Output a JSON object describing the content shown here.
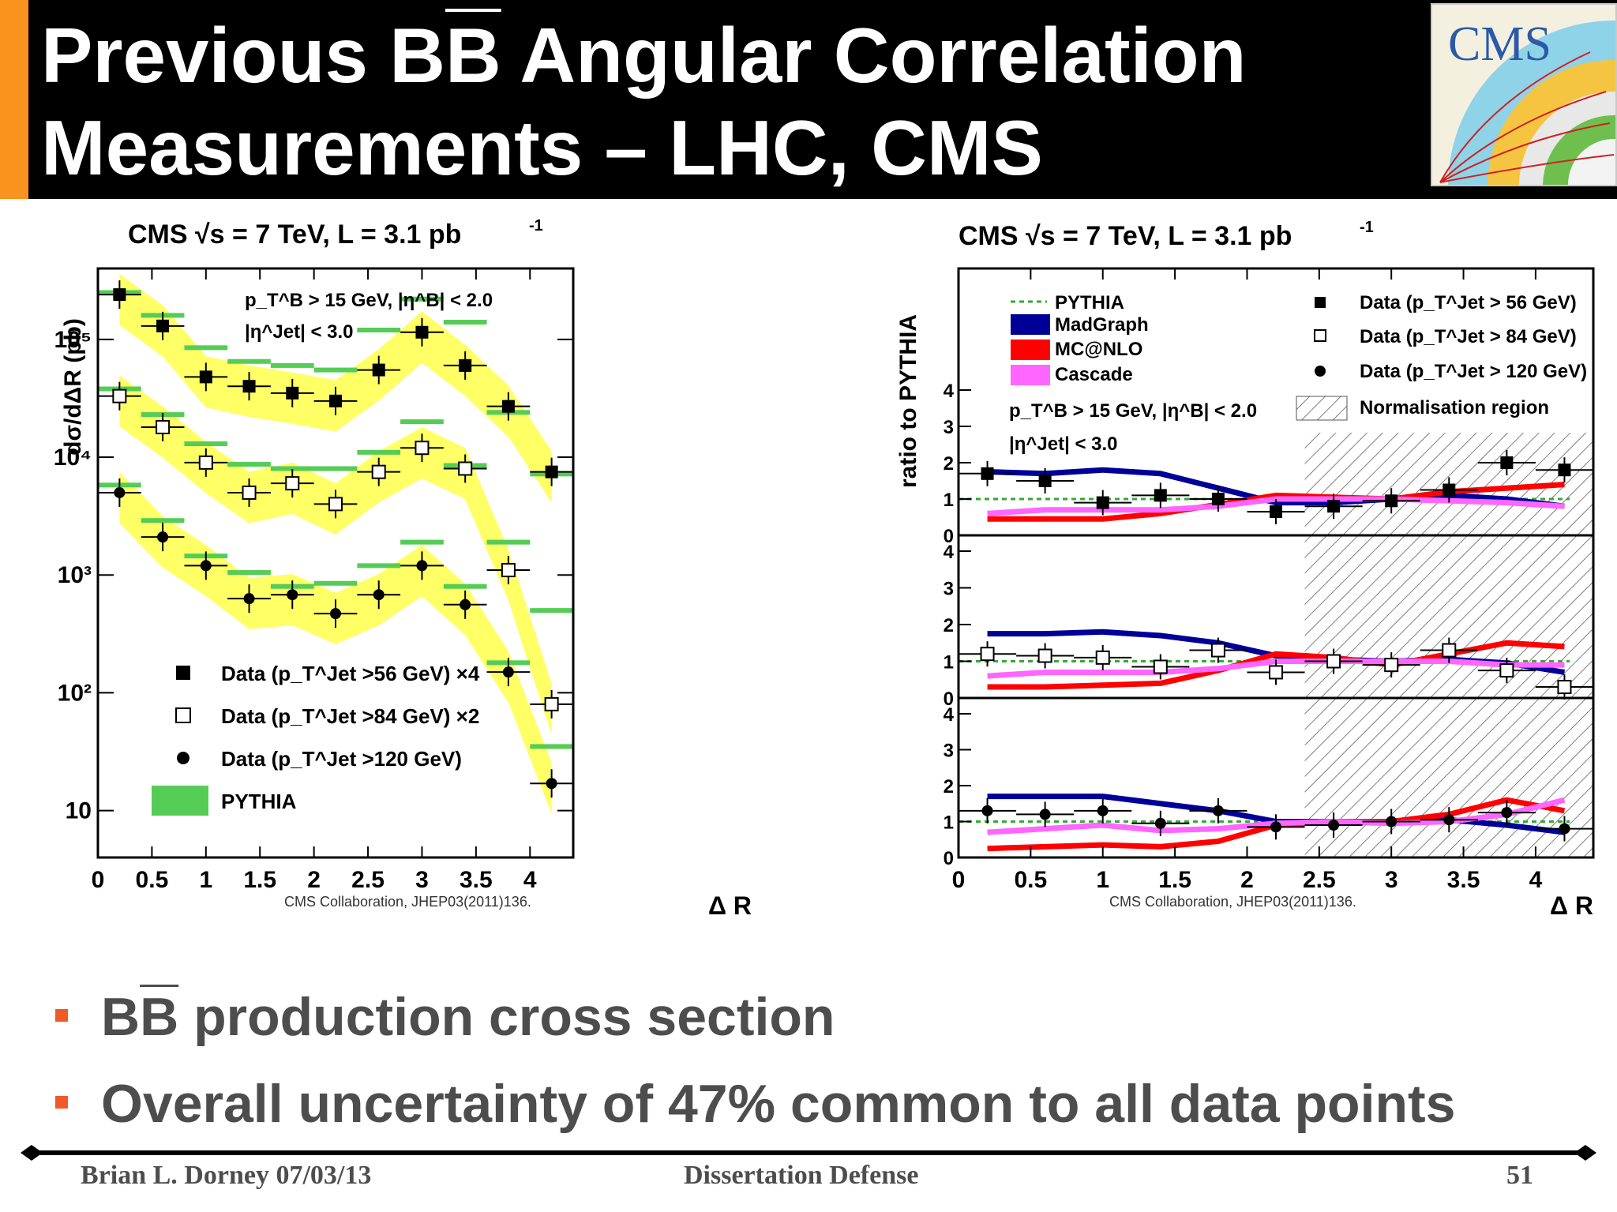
{
  "header": {
    "title_line1_a": "Previous B",
    "title_line1_b": "B",
    "title_line1_c": " Angular Correlation",
    "title_line2": "Measurements – LHC, CMS",
    "logo_text": "CMS"
  },
  "colors": {
    "accent": "#f7931e",
    "pythia": "#55cc55",
    "band": "#ffff66",
    "madgraph": "#000099",
    "mcatnlo": "#ff0000",
    "cascade": "#ff66ff",
    "bullet": "#f05a28"
  },
  "left_plot": {
    "heading": "CMS   √s = 7 TeV, L = 3.1 pb",
    "heading_sup": "-1",
    "ylabel": "dσ/dΔR (pb)",
    "xlabel": "Δ R",
    "cut_line1": "p_T^B > 15 GeV, |η^B| < 2.0",
    "cut_line2": "|η^Jet| < 3.0",
    "legend": [
      "Data (p_T^Jet >56 GeV) ×4",
      "Data (p_T^Jet >84 GeV) ×2",
      "Data (p_T^Jet >120 GeV)",
      "PYTHIA"
    ],
    "y_ticks": [
      "10",
      "10²",
      "10³",
      "10⁴",
      "10⁵"
    ],
    "x_ticks": [
      "0",
      "0.5",
      "1",
      "1.5",
      "2",
      "2.5",
      "3",
      "3.5",
      "4"
    ],
    "citation": "CMS Collaboration, JHEP03(2011)136."
  },
  "right_plot": {
    "heading": "CMS   √s = 7 TeV, L = 3.1 pb",
    "heading_sup": "-1",
    "ylabel": "ratio to PYTHIA",
    "xlabel": "Δ R",
    "legend_left": [
      "PYTHIA",
      "MadGraph",
      "MC@NLO",
      "Cascade"
    ],
    "legend_right": [
      "Data (p_T^Jet > 56 GeV)",
      "Data (p_T^Jet > 84 GeV)",
      "Data (p_T^Jet > 120 GeV)",
      "Normalisation region"
    ],
    "cut_line1": "p_T^B > 15 GeV, |η^B| < 2.0",
    "cut_line2": "|η^Jet| < 3.0",
    "y_ticks": [
      "0",
      "1",
      "2",
      "3",
      "4"
    ],
    "x_ticks": [
      "0",
      "0.5",
      "1",
      "1.5",
      "2",
      "2.5",
      "3",
      "3.5",
      "4"
    ],
    "citation": "CMS Collaboration, JHEP03(2011)136."
  },
  "chart_data": [
    {
      "type": "scatter",
      "panel": "left",
      "xlabel": "Δ R",
      "ylabel": "dσ/dΔR (pb)",
      "xlim": [
        0,
        4.4
      ],
      "ylim": [
        4,
        400000
      ],
      "yscale": "log",
      "x": [
        0.2,
        0.6,
        1.0,
        1.4,
        1.8,
        2.2,
        2.6,
        3.0,
        3.4,
        3.8,
        4.2
      ],
      "series": [
        {
          "name": "Data (p_T^Jet >56 GeV) ×4",
          "marker": "filled-square",
          "values": [
            240000,
            130000,
            48000,
            40000,
            35000,
            30000,
            55000,
            115000,
            60000,
            27000,
            7500
          ]
        },
        {
          "name": "Data (p_T^Jet >84 GeV) ×2",
          "marker": "open-square",
          "values": [
            33000,
            18000,
            9000,
            5000,
            6000,
            4000,
            7500,
            12000,
            8000,
            1100,
            80
          ]
        },
        {
          "name": "Data (p_T^Jet >120 GeV)",
          "marker": "filled-circle",
          "values": [
            5000,
            2100,
            1200,
            630,
            680,
            470,
            680,
            1200,
            560,
            150,
            17
          ]
        },
        {
          "name": "PYTHIA",
          "marker": "band",
          "values": [
            250000,
            160000,
            85000,
            65000,
            60000,
            55000,
            120000,
            220000,
            140000,
            24000,
            7200
          ]
        },
        {
          "name": "PYTHIA",
          "marker": "band",
          "values": [
            38000,
            23000,
            13000,
            8700,
            8000,
            8000,
            11000,
            20000,
            8500,
            1900,
            500
          ]
        },
        {
          "name": "PYTHIA",
          "marker": "band",
          "values": [
            5800,
            2900,
            1450,
            1050,
            800,
            850,
            1200,
            1900,
            800,
            180,
            35
          ]
        }
      ]
    },
    {
      "type": "line",
      "panel": "right",
      "xlabel": "Δ R",
      "ylabel": "ratio to PYTHIA",
      "xlim": [
        0,
        4.4
      ],
      "ylim": [
        0,
        4
      ],
      "normalisation_region": [
        2.4,
        4.4
      ],
      "x": [
        0.2,
        0.6,
        1.0,
        1.4,
        1.8,
        2.2,
        2.6,
        3.0,
        3.4,
        3.8,
        4.2
      ],
      "panels": [
        {
          "series": [
            {
              "name": "Data (p_T^Jet > 56 GeV)",
              "marker": "filled-square",
              "values": [
                1.7,
                1.5,
                0.9,
                1.1,
                1.0,
                0.65,
                0.8,
                0.95,
                1.25,
                2.0,
                1.8
              ]
            },
            {
              "name": "MadGraph",
              "values": [
                1.75,
                1.7,
                1.8,
                1.7,
                1.3,
                0.9,
                0.9,
                1.0,
                1.1,
                1.0,
                0.8
              ]
            },
            {
              "name": "MC@NLO",
              "values": [
                0.45,
                0.45,
                0.45,
                0.6,
                0.85,
                1.1,
                1.05,
                1.0,
                1.2,
                1.3,
                1.4
              ]
            },
            {
              "name": "Cascade",
              "values": [
                0.6,
                0.7,
                0.7,
                0.7,
                0.8,
                1.0,
                1.0,
                1.0,
                0.95,
                0.9,
                0.8
              ]
            }
          ]
        },
        {
          "series": [
            {
              "name": "Data (p_T^Jet > 84 GeV)",
              "marker": "open-square",
              "values": [
                1.2,
                1.15,
                1.1,
                0.85,
                1.3,
                0.7,
                1.0,
                0.9,
                1.3,
                0.75,
                0.3
              ]
            },
            {
              "name": "MadGraph",
              "values": [
                1.75,
                1.75,
                1.8,
                1.7,
                1.5,
                1.15,
                1.05,
                1.0,
                1.05,
                0.95,
                0.7
              ]
            },
            {
              "name": "MC@NLO",
              "values": [
                0.3,
                0.3,
                0.35,
                0.4,
                0.75,
                1.2,
                1.1,
                0.9,
                1.2,
                1.5,
                1.4
              ]
            },
            {
              "name": "Cascade",
              "values": [
                0.6,
                0.7,
                0.7,
                0.7,
                0.8,
                1.0,
                1.0,
                1.0,
                1.0,
                0.9,
                0.9
              ]
            }
          ]
        },
        {
          "series": [
            {
              "name": "Data (p_T^Jet > 120 GeV)",
              "marker": "filled-circle",
              "values": [
                1.3,
                1.2,
                1.3,
                0.95,
                1.3,
                0.85,
                0.9,
                1.0,
                1.05,
                1.25,
                0.8
              ]
            },
            {
              "name": "MadGraph",
              "values": [
                1.7,
                1.7,
                1.7,
                1.5,
                1.3,
                1.0,
                1.0,
                1.0,
                1.05,
                0.9,
                0.7
              ]
            },
            {
              "name": "MC@NLO",
              "values": [
                0.25,
                0.3,
                0.35,
                0.3,
                0.45,
                0.9,
                1.0,
                1.0,
                1.2,
                1.6,
                1.3
              ]
            },
            {
              "name": "Cascade",
              "values": [
                0.7,
                0.8,
                0.9,
                0.75,
                0.8,
                0.95,
                1.0,
                0.95,
                1.0,
                1.2,
                1.6
              ]
            }
          ]
        }
      ]
    }
  ],
  "bullets": [
    {
      "a": "B",
      "b": "B",
      "c": " production cross section"
    },
    {
      "a": "Overall uncertainty of 47% common to all data points",
      "b": "",
      "c": ""
    }
  ],
  "footer": {
    "author": "Brian L. Dorney 07/03/13",
    "center": "Dissertation Defense",
    "page": "51"
  }
}
